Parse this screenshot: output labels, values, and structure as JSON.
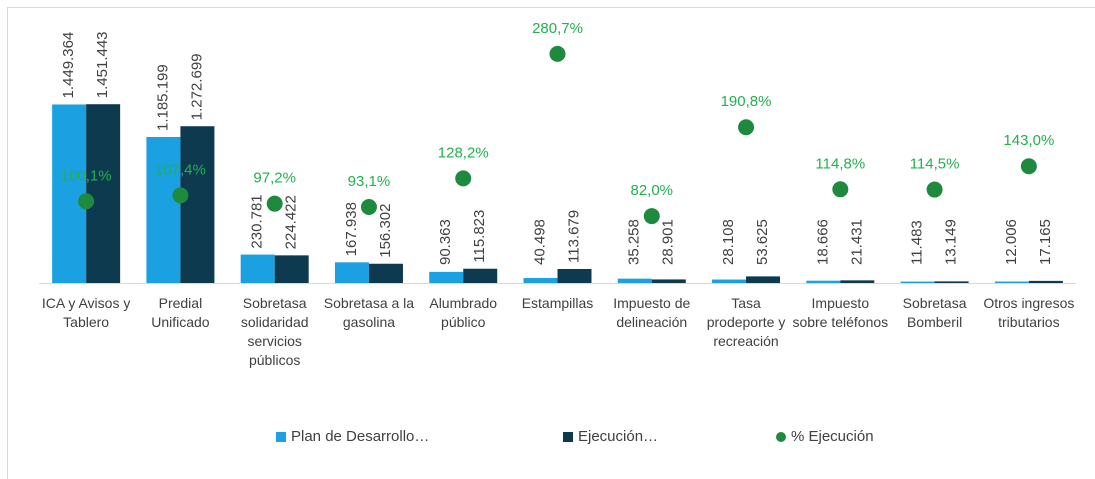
{
  "chart_data": {
    "type": "bar",
    "categories": [
      "ICA y Avisos y Tablero",
      "Predial Unificado",
      "Sobretasa solidaridad servicios públicos",
      "Sobretasa a la gasolina",
      "Alumbrado público",
      "Estampillas",
      "Impuesto de delineación",
      "Tasa prodeporte y recreación",
      "Impuesto sobre teléfonos",
      "Sobretasa Bomberil",
      "Otros ingresos tributarios"
    ],
    "series": [
      {
        "name": "Plan de Desarrollo…",
        "color": "#1ba1e2",
        "values": [
          1449364,
          1185199,
          230781,
          167938,
          90363,
          40498,
          35258,
          28108,
          18666,
          11483,
          12006
        ],
        "value_labels": [
          "1.449.364",
          "1.185.199",
          "230.781",
          "167.938",
          "90.363",
          "40.498",
          "35.258",
          "28.108",
          "18.666",
          "11.483",
          "12.006"
        ]
      },
      {
        "name": "Ejecución…",
        "color": "#0d3a4f",
        "values": [
          1451443,
          1272699,
          224422,
          156302,
          115823,
          113679,
          28901,
          53625,
          21431,
          13149,
          17165
        ],
        "value_labels": [
          "1.451.443",
          "1.272.699",
          "224.422",
          "156.302",
          "115.823",
          "113.679",
          "28.901",
          "53.625",
          "21.431",
          "13.149",
          "17.165"
        ]
      },
      {
        "name": "% Ejecución",
        "color": "#1e8a3e",
        "type": "scatter",
        "axis": "y2",
        "label_color": "#22b14c",
        "values": [
          100.1,
          107.4,
          97.2,
          93.1,
          128.2,
          280.7,
          82.0,
          190.8,
          114.8,
          114.5,
          143.0
        ],
        "value_labels": [
          "100,1%",
          "107,4%",
          "97,2%",
          "93,1%",
          "128,2%",
          "280,7%",
          "82,0%",
          "190,8%",
          "114,8%",
          "114,5%",
          "143,0%"
        ]
      }
    ],
    "ylim": [
      0,
      2200000
    ],
    "y2lim": [
      0,
      332
    ],
    "legend": "bottom"
  }
}
